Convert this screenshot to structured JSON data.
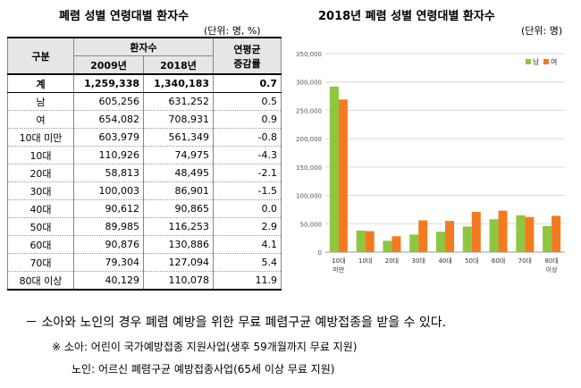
{
  "left": {
    "title": "폐렴 성별 연령대별 환자수",
    "unit": "(단위: 명, %)",
    "headers": {
      "group": "구분",
      "patients": "환자수",
      "y2009": "2009년",
      "y2018": "2018년",
      "growth": [
        "연평균",
        "증감률"
      ]
    },
    "rows": [
      {
        "cat": "계",
        "v2009": "1,259,338",
        "v2018": "1,340,183",
        "g": "0.7",
        "total": true
      },
      {
        "cat": "남",
        "v2009": "605,256",
        "v2018": "631,252",
        "g": "0.5"
      },
      {
        "cat": "여",
        "v2009": "654,082",
        "v2018": "708,931",
        "g": "0.9"
      },
      {
        "cat": "10대 미만",
        "v2009": "603,979",
        "v2018": "561,349",
        "g": "-0.8"
      },
      {
        "cat": "10대",
        "v2009": "110,926",
        "v2018": "74,975",
        "g": "-4.3"
      },
      {
        "cat": "20대",
        "v2009": "58,813",
        "v2018": "48,495",
        "g": "-2.1"
      },
      {
        "cat": "30대",
        "v2009": "100,003",
        "v2018": "86,901",
        "g": "-1.5"
      },
      {
        "cat": "40대",
        "v2009": "90,612",
        "v2018": "90,865",
        "g": "0.0"
      },
      {
        "cat": "50대",
        "v2009": "89,985",
        "v2018": "116,253",
        "g": "2.9"
      },
      {
        "cat": "60대",
        "v2009": "90,876",
        "v2018": "130,886",
        "g": "4.1"
      },
      {
        "cat": "70대",
        "v2009": "79,304",
        "v2018": "127,094",
        "g": "5.4"
      },
      {
        "cat": "80대 이상",
        "v2009": "40,129",
        "v2018": "110,078",
        "g": "11.9"
      }
    ]
  },
  "right": {
    "title": "2018년 폐렴 성별 연령대별 환자수",
    "unit": "(단위: 명)"
  },
  "chart_data": {
    "type": "bar",
    "categories": [
      [
        "10대",
        "미만"
      ],
      [
        "10대"
      ],
      [
        "20대"
      ],
      [
        "30대"
      ],
      [
        "40대"
      ],
      [
        "50대"
      ],
      [
        "60대"
      ],
      [
        "70대"
      ],
      [
        "80대",
        "이상"
      ]
    ],
    "series": [
      {
        "name": "남",
        "color": "#8dc63f",
        "values": [
          292000,
          38000,
          20000,
          31000,
          36000,
          45000,
          58000,
          65000,
          46000
        ]
      },
      {
        "name": "여",
        "color": "#f47a20",
        "values": [
          269000,
          37000,
          28000,
          56000,
          55000,
          71000,
          73000,
          62000,
          64000
        ]
      }
    ],
    "yticks": [
      "0",
      "50,000",
      "100,000",
      "150,000",
      "200,000",
      "250,000",
      "300,000",
      "350,000"
    ],
    "ylim": [
      0,
      350000
    ],
    "grid": true,
    "legend": "top-right"
  },
  "notes": {
    "main": "－ 소아와 노인의 경우 폐렴 예방을 위한 무료 폐렴구균 예방접종을 받을 수 있다.",
    "child": "※ 소아: 어린이 국가예방접종 지원사업(생후 59개월까지 무료 지원)",
    "elder": "노인: 어르신 폐렴구균 예방접종사업(65세 이상 무료 지원)"
  }
}
